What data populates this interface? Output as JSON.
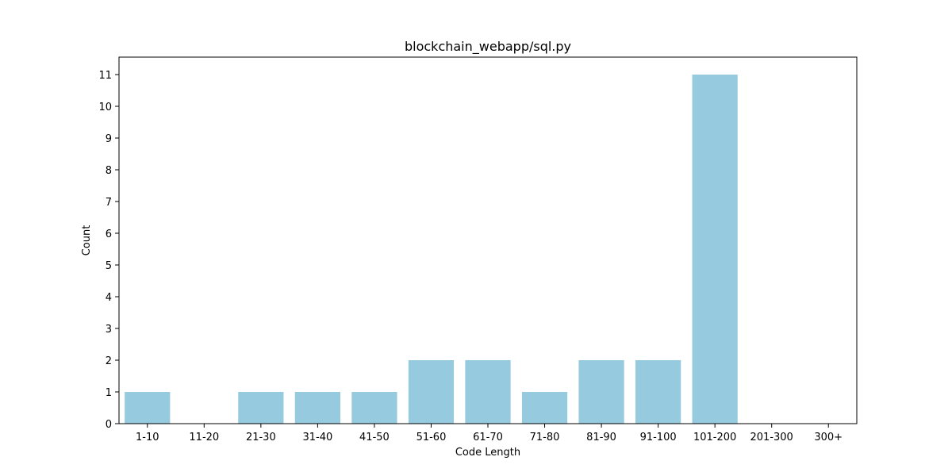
{
  "chart_data": {
    "type": "bar",
    "title": "blockchain_webapp/sql.py",
    "xlabel": "Code Length",
    "ylabel": "Count",
    "categories": [
      "1-10",
      "11-20",
      "21-30",
      "31-40",
      "41-50",
      "51-60",
      "61-70",
      "71-80",
      "81-90",
      "91-100",
      "101-200",
      "201-300",
      "300+"
    ],
    "values": [
      1,
      0,
      1,
      1,
      1,
      2,
      2,
      1,
      2,
      2,
      11,
      0,
      0
    ],
    "ylim": [
      0,
      11.55
    ],
    "yticks": [
      0,
      1,
      2,
      3,
      4,
      5,
      6,
      7,
      8,
      9,
      10,
      11
    ],
    "grid": false,
    "bar_color": "#96cade"
  }
}
